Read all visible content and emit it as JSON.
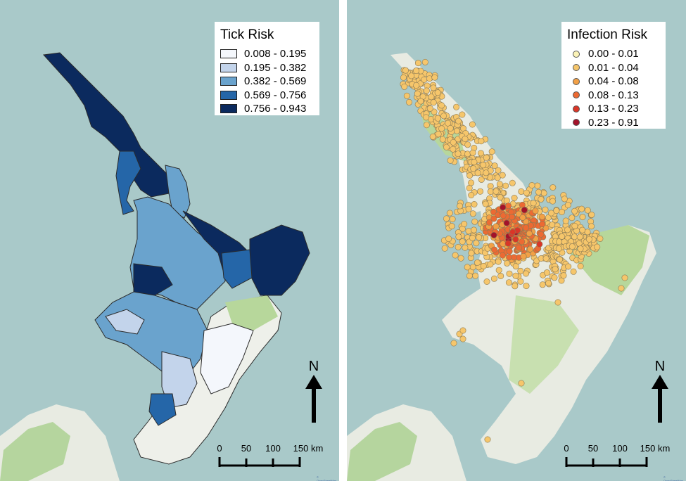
{
  "maps": [
    {
      "legend": {
        "title": "Tick Risk",
        "items": [
          {
            "label": "0.008 - 0.195",
            "color": "#f4f7fc"
          },
          {
            "label": "0.195 - 0.382",
            "color": "#c3d4eb"
          },
          {
            "label": "0.382 - 0.569",
            "color": "#6aa3cd"
          },
          {
            "label": "0.569 - 0.756",
            "color": "#2566a8"
          },
          {
            "label": "0.756 - 0.943",
            "color": "#0b2a5e"
          }
        ]
      },
      "north_label": "N",
      "scale": {
        "ticks": [
          "0",
          "50",
          "100",
          "150 km"
        ]
      },
      "attribution": "© OpenStreetMap"
    },
    {
      "legend": {
        "title": "Infection Risk",
        "items": [
          {
            "label": "0.00 - 0.01",
            "color": "#fbf3b7"
          },
          {
            "label": "0.01 - 0.04",
            "color": "#f6c66b"
          },
          {
            "label": "0.04 - 0.08",
            "color": "#f2a046"
          },
          {
            "label": "0.08 - 0.13",
            "color": "#ec6a33"
          },
          {
            "label": "0.13 - 0.23",
            "color": "#d93628"
          },
          {
            "label": "0.23 - 0.91",
            "color": "#a3122a"
          }
        ]
      },
      "north_label": "N",
      "scale": {
        "ticks": [
          "0",
          "50",
          "100",
          "150 km"
        ]
      },
      "attribution": "© OpenStreetMap"
    }
  ],
  "colors": {
    "sea": "#a9c9c9",
    "land": "#e8ebe2",
    "forest": "#a8d08d"
  }
}
